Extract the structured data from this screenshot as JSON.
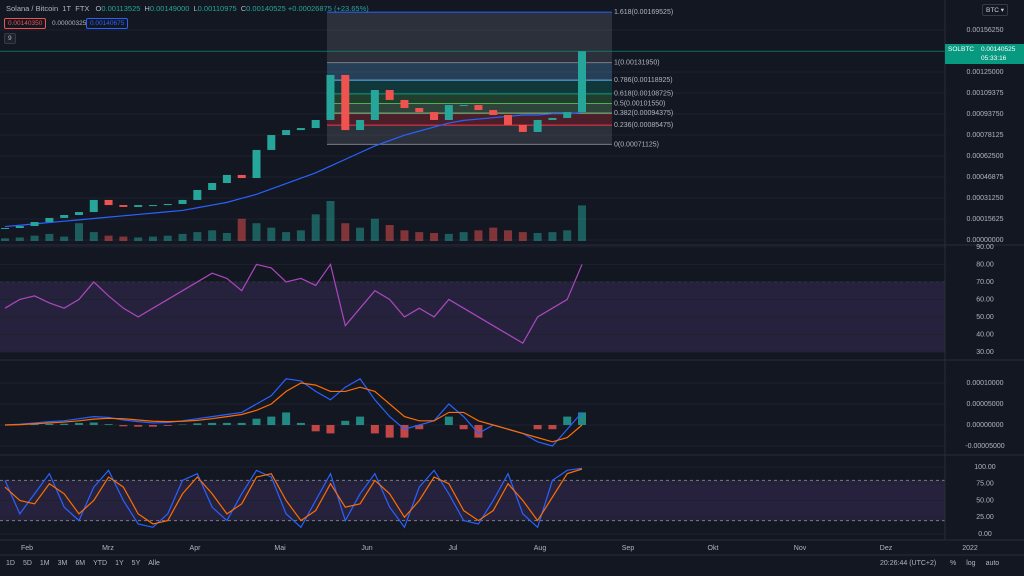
{
  "header": {
    "symbol": "Solana / Bitcoin",
    "interval": "1T",
    "exchange": "FTX",
    "ohlc": [
      {
        "key": "O",
        "value": "0.00113525"
      },
      {
        "key": "H",
        "value": "0.00149000"
      },
      {
        "key": "L",
        "value": "0.00110975"
      },
      {
        "key": "C",
        "value": "0.00140525"
      }
    ],
    "change": "+0.00026875 (+23.65%)",
    "bid": "0.00140350",
    "spread": "0.00000325",
    "ask": "0.00140675",
    "indicator_count": "9",
    "currency": "BTC"
  },
  "price_tag": {
    "symbol": "SOLBTC",
    "price": "0.00140525",
    "countdown": "05:33:16"
  },
  "time_axis": {
    "labels": [
      "Feb",
      "Mrz",
      "Apr",
      "Mai",
      "Jun",
      "Jul",
      "Aug",
      "Sep",
      "Okt",
      "Nov",
      "Dez",
      "2022"
    ]
  },
  "toolbar": {
    "ranges": [
      "1D",
      "5D",
      "1M",
      "3M",
      "6M",
      "YTD",
      "1Y",
      "5Y",
      "Alle"
    ],
    "clock": "20:26:44 (UTC+2)",
    "options": [
      "%",
      "log",
      "auto"
    ]
  },
  "chart_data": [
    {
      "type": "candlestick",
      "up_color": "#26a69a",
      "down_color": "#ef5350",
      "close": [
        8.93e-05,
        0.000104,
        0.000134,
        0.000164,
        0.000186,
        0.000208,
        0.000298,
        0.00026,
        0.000246,
        0.00026,
        0.00026,
        0.000268,
        0.000298,
        0.000372,
        0.000424,
        0.000484,
        0.000461,
        0.00067,
        0.000781,
        0.000818,
        0.000833,
        0.000893,
        0.001228,
        0.000818,
        0.000893,
        0.001116,
        0.001042,
        0.000982,
        0.000952,
        0.000893,
        0.001004,
        0.001004,
        0.000967,
        0.00093,
        0.000856,
        0.000804,
        0.000893,
        0.000908,
        0.000952,
        0.001405
      ],
      "volume": [
        3,
        4,
        6,
        8,
        5,
        20,
        10,
        6,
        5,
        4,
        5,
        6,
        8,
        10,
        12,
        9,
        25,
        20,
        15,
        10,
        12,
        30,
        45,
        20,
        15,
        25,
        18,
        12,
        10,
        9,
        8,
        10,
        12,
        15,
        12,
        10,
        9,
        10,
        12,
        40
      ],
      "ma": {
        "color": "#2962ff",
        "values": [
          0.0001,
          0.00011,
          0.00012,
          0.00013,
          0.00014,
          0.00015,
          0.00016,
          0.00017,
          0.00018,
          0.00019,
          0.0002,
          0.00021,
          0.00022,
          0.00024,
          0.00026,
          0.00028,
          0.00031,
          0.00034,
          0.00038,
          0.00042,
          0.00046,
          0.0005,
          0.00055,
          0.0006,
          0.00065,
          0.0007,
          0.00074,
          0.00078,
          0.00081,
          0.00084,
          0.00087,
          0.00089,
          0.0009,
          0.00091,
          0.00092,
          0.00093,
          0.00093,
          0.00094,
          0.00094,
          0.00095
        ]
      },
      "ylim": [
        -3.72e-05,
        0.0017857
      ],
      "yticks": [
        {
          "value": 0.0015625,
          "label": "0.00156250"
        },
        {
          "value": 0.00125,
          "label": "0.00125000"
        },
        {
          "value": 0.00109375,
          "label": "0.00109375"
        },
        {
          "value": 0.0009375,
          "label": "0.00093750"
        },
        {
          "value": 0.00078125,
          "label": "0.00078125"
        },
        {
          "value": 0.000625,
          "label": "0.00062500"
        },
        {
          "value": 0.00046875,
          "label": "0.00046875"
        },
        {
          "value": 0.0003125,
          "label": "0.00031250"
        },
        {
          "value": 0.00015625,
          "label": "0.00015625"
        },
        {
          "value": 0,
          "label": "0.00000000"
        }
      ],
      "fib_levels": [
        {
          "value": 0.00169525,
          "label": "1.618(0.00169525)",
          "color": "#2962ff"
        },
        {
          "value": 0.0013195,
          "label": "1(0.00131950)",
          "color": "#787b86"
        },
        {
          "value": 0.00118925,
          "label": "0.786(0.00118925)",
          "color": "#64b5f6"
        },
        {
          "value": 0.00108725,
          "label": "0.618(0.00108725)",
          "color": "#089981"
        },
        {
          "value": 0.0010155,
          "label": "0.5(0.00101550)",
          "color": "#4caf50"
        },
        {
          "value": 0.00094375,
          "label": "0.382(0.00094375)",
          "color": "#81c784"
        },
        {
          "value": 0.00085475,
          "label": "0.236(0.00085475)",
          "color": "#f23645"
        },
        {
          "value": 0.00071125,
          "label": "0(0.00071125)",
          "color": "#787b86"
        }
      ]
    },
    {
      "type": "line",
      "color": "#ab47bc",
      "values": [
        55,
        60,
        62,
        58,
        55,
        60,
        70,
        62,
        55,
        50,
        55,
        60,
        65,
        70,
        75,
        72,
        65,
        80,
        78,
        70,
        72,
        68,
        80,
        45,
        55,
        65,
        60,
        50,
        55,
        50,
        60,
        55,
        50,
        45,
        40,
        35,
        50,
        55,
        60,
        80
      ],
      "ylim": [
        25.4,
        91.1
      ],
      "band": [
        30,
        70
      ],
      "yticks": [
        {
          "value": 90,
          "label": "90.00"
        },
        {
          "value": 80,
          "label": "80.00"
        },
        {
          "value": 70,
          "label": "70.00"
        },
        {
          "value": 60,
          "label": "60.00"
        },
        {
          "value": 50,
          "label": "50.00"
        },
        {
          "value": 40,
          "label": "40.00"
        },
        {
          "value": 30,
          "label": "30.00"
        }
      ]
    },
    {
      "type": "macd",
      "up_color": "#26a69a",
      "down_color": "#ef5350",
      "series": [
        {
          "color": "#2962ff",
          "values": [
            0,
            2e-06,
            5e-06,
            8e-06,
            1e-05,
            1.5e-05,
            2e-05,
            1.8e-05,
            1.2e-05,
            8e-06,
            5e-06,
            6e-06,
            1e-05,
            1.5e-05,
            2e-05,
            2.5e-05,
            3e-05,
            5e-05,
            7e-05,
            0.00011,
            0.000105,
            8e-05,
            6e-05,
            9e-05,
            0.00011,
            6e-05,
            2e-05,
            -1e-05,
            0,
            1e-05,
            5e-05,
            2e-05,
            -2e-05,
            0,
            -1e-05,
            -2e-05,
            -4e-05,
            -5e-05,
            -1e-05,
            3e-05
          ]
        },
        {
          "color": "#ff6d00",
          "values": [
            0,
            1e-06,
            3e-06,
            5e-06,
            7e-06,
            1e-05,
            1.4e-05,
            1.6e-05,
            1.5e-05,
            1.2e-05,
            9e-06,
            8e-06,
            9e-06,
            1.1e-05,
            1.5e-05,
            2e-05,
            2.5e-05,
            3.5e-05,
            5e-05,
            8e-05,
            0.0001,
            9.5e-05,
            8e-05,
            8e-05,
            9e-05,
            8e-05,
            5e-05,
            2e-05,
            1e-05,
            1e-05,
            3e-05,
            3e-05,
            1e-05,
            0,
            -1e-05,
            -2e-05,
            -3e-05,
            -4e-05,
            -3e-05,
            0
          ]
        }
      ],
      "histogram": [
        0,
        1e-06,
        2e-06,
        3e-06,
        3e-06,
        5e-06,
        6e-06,
        2e-06,
        -3e-06,
        -4e-06,
        -4e-06,
        -2e-06,
        1e-06,
        4e-06,
        5e-06,
        5e-06,
        5e-06,
        1.5e-05,
        2e-05,
        3e-05,
        5e-06,
        -1.5e-05,
        -2e-05,
        1e-05,
        2e-05,
        -2e-05,
        -3e-05,
        -3e-05,
        -1e-05,
        0,
        2e-05,
        -1e-05,
        -3e-05,
        0,
        0,
        0,
        -1e-05,
        -1e-05,
        2e-05,
        3e-05
      ],
      "ylim": [
        -7.14e-05,
        0.0001548
      ],
      "yticks": [
        {
          "value": 0.0001,
          "label": "0.00010000"
        },
        {
          "value": 5e-05,
          "label": "0.00005000"
        },
        {
          "value": 0,
          "label": "0.00000000"
        },
        {
          "value": -5e-05,
          "label": "-0.00005000"
        }
      ]
    },
    {
      "type": "line",
      "band": [
        20,
        80
      ],
      "series": [
        {
          "color": "#2962ff",
          "values": [
            80,
            30,
            60,
            90,
            40,
            20,
            70,
            95,
            50,
            15,
            10,
            30,
            80,
            90,
            40,
            20,
            60,
            95,
            85,
            30,
            10,
            50,
            90,
            20,
            60,
            90,
            40,
            10,
            70,
            95,
            60,
            20,
            15,
            50,
            90,
            30,
            10,
            80,
            95,
            98
          ]
        },
        {
          "color": "#ff6d00",
          "values": [
            70,
            50,
            45,
            75,
            60,
            30,
            50,
            85,
            70,
            30,
            15,
            20,
            60,
            85,
            60,
            30,
            45,
            85,
            90,
            50,
            20,
            35,
            75,
            40,
            45,
            80,
            60,
            25,
            50,
            85,
            75,
            35,
            20,
            35,
            75,
            50,
            20,
            55,
            90,
            97
          ]
        }
      ],
      "ylim": [
        -9,
        117.9
      ],
      "yticks": [
        {
          "value": 100,
          "label": "100.00"
        },
        {
          "value": 75,
          "label": "75.00"
        },
        {
          "value": 50,
          "label": "50.00"
        },
        {
          "value": 25,
          "label": "25.00"
        },
        {
          "value": 0,
          "label": "0.00"
        }
      ]
    }
  ]
}
